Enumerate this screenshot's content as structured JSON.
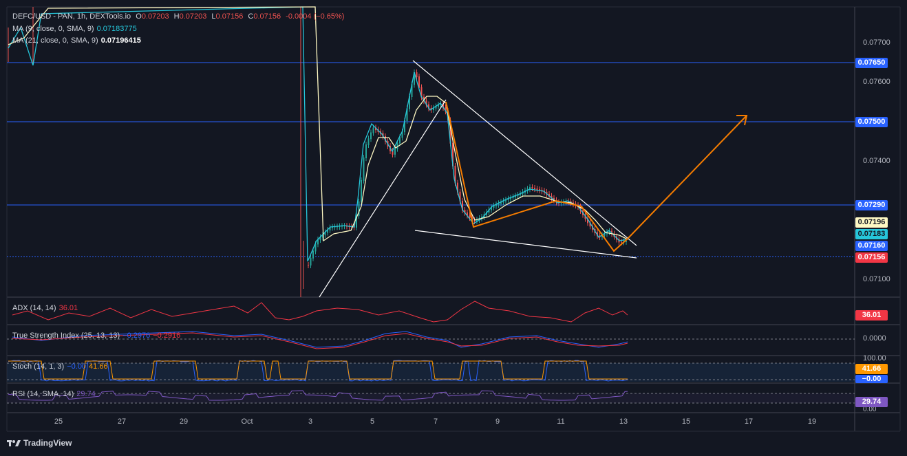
{
  "header": {
    "symbol": "DEFC/USD - PAN, 1h, DEXTools.io",
    "open_label": "O",
    "open": "0.07203",
    "high_label": "H",
    "high": "0.07203",
    "low_label": "L",
    "low": "0.07156",
    "close_label": "C",
    "close": "0.07156",
    "change": "-0.0004 (−0.65%)"
  },
  "indicators_main": [
    {
      "label": "MA (9, close, 0, SMA, 9)",
      "value": "0.07183775",
      "color": "#26c6da"
    },
    {
      "label": "MA (21, close, 0, SMA, 9)",
      "value": "0.07196415",
      "color": "#ffffff"
    }
  ],
  "price_axis": [
    "0.07700",
    "0.07600",
    "0.07400",
    "0.07100"
  ],
  "price_tags": [
    {
      "text": "0.07650",
      "bg": "#2962ff",
      "fg": "#ffffff"
    },
    {
      "text": "0.07500",
      "bg": "#2962ff",
      "fg": "#ffffff"
    },
    {
      "text": "0.07290",
      "bg": "#2962ff",
      "fg": "#ffffff"
    },
    {
      "text": "0.07196",
      "bg": "#fff9c4",
      "fg": "#131722"
    },
    {
      "text": "0.07183",
      "bg": "#26c6da",
      "fg": "#131722"
    },
    {
      "text": "0.07160",
      "bg": "#2962ff",
      "fg": "#ffffff"
    },
    {
      "text": "0.07156",
      "bg": "#f23645",
      "fg": "#ffffff"
    }
  ],
  "panes": {
    "adx": {
      "label": "ADX (14, 14)",
      "value": "36.01",
      "tag": "36.01",
      "color": "#f23645"
    },
    "tsi": {
      "label": "True Strength Index (25, 13, 13)",
      "value1": "−0.2976",
      "value2": "−0.2916",
      "axis": "0.0000"
    },
    "stoch": {
      "label": "Stoch (14, 1, 3)",
      "value1": "−0.00",
      "value2": "41.66",
      "tag1": "41.66",
      "tag2": "−0.00",
      "axis_top": "100.00"
    },
    "rsi": {
      "label": "RSI (14, SMA, 14)",
      "value": "29.74",
      "tag": "29.74",
      "axis_bottom": "0.00"
    }
  },
  "date_axis": [
    "25",
    "27",
    "29",
    "Oct",
    "3",
    "5",
    "7",
    "9",
    "11",
    "13",
    "15",
    "17",
    "19"
  ],
  "brand": "TradingView",
  "colors": {
    "bg": "#131722",
    "up": "#26a69a",
    "down": "#ef5350",
    "blue": "#2962ff",
    "orange": "#ff9800"
  }
}
